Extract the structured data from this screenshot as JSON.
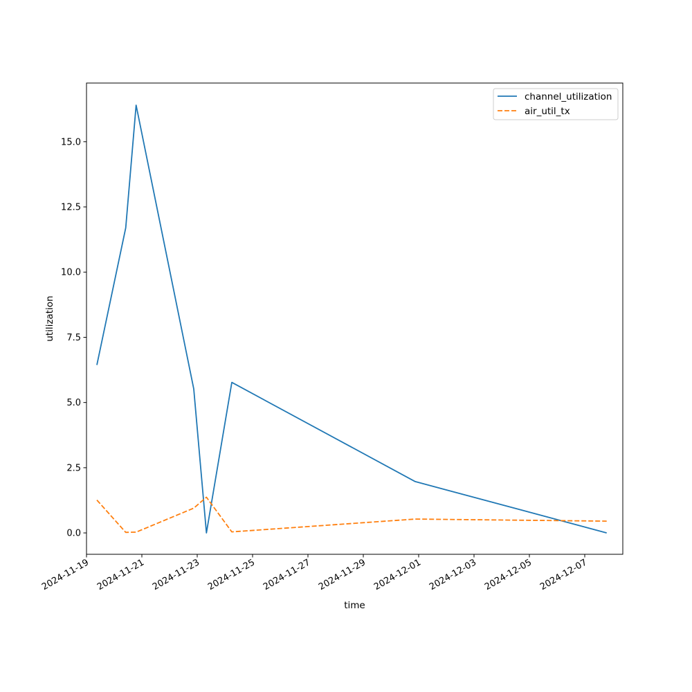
{
  "chart_data": {
    "type": "line",
    "title": "",
    "xlabel": "time",
    "ylabel": "utilization",
    "x_ticks": [
      "2024-11-19",
      "2024-11-21",
      "2024-11-23",
      "2024-11-25",
      "2024-11-27",
      "2024-11-29",
      "2024-12-01",
      "2024-12-03",
      "2024-12-05",
      "2024-12-07"
    ],
    "y_ticks": [
      0.0,
      2.5,
      5.0,
      7.5,
      10.0,
      12.5,
      15.0
    ],
    "y_tick_labels": [
      "0.0",
      "2.5",
      "5.0",
      "7.5",
      "10.0",
      "12.5",
      "15.0"
    ],
    "xlim": [
      "2024-11-19T00:00",
      "2024-12-08T09:00"
    ],
    "ylim": [
      -0.82,
      17.25
    ],
    "legend_position": "top-right",
    "grid": false,
    "series": [
      {
        "name": "channel_utilization",
        "color": "#1f77b4",
        "dash": "solid",
        "points": [
          [
            "2024-11-19T09:00",
            6.44
          ],
          [
            "2024-11-20T10:00",
            11.7
          ],
          [
            "2024-11-20T19:00",
            16.4
          ],
          [
            "2024-11-22T21:00",
            5.52
          ],
          [
            "2024-11-23T08:00",
            0.0
          ],
          [
            "2024-11-24T06:00",
            5.77
          ],
          [
            "2024-11-30T21:00",
            1.97
          ],
          [
            "2024-12-07T19:00",
            0.0
          ]
        ]
      },
      {
        "name": "air_util_tx",
        "color": "#ff7f0e",
        "dash": "dashed",
        "points": [
          [
            "2024-11-19T09:00",
            1.26
          ],
          [
            "2024-11-20T10:00",
            0.02
          ],
          [
            "2024-11-20T19:00",
            0.03
          ],
          [
            "2024-11-22T21:00",
            0.95
          ],
          [
            "2024-11-23T08:00",
            1.37
          ],
          [
            "2024-11-24T06:00",
            0.04
          ],
          [
            "2024-11-30T21:00",
            0.53
          ],
          [
            "2024-12-07T19:00",
            0.45
          ]
        ]
      }
    ]
  }
}
